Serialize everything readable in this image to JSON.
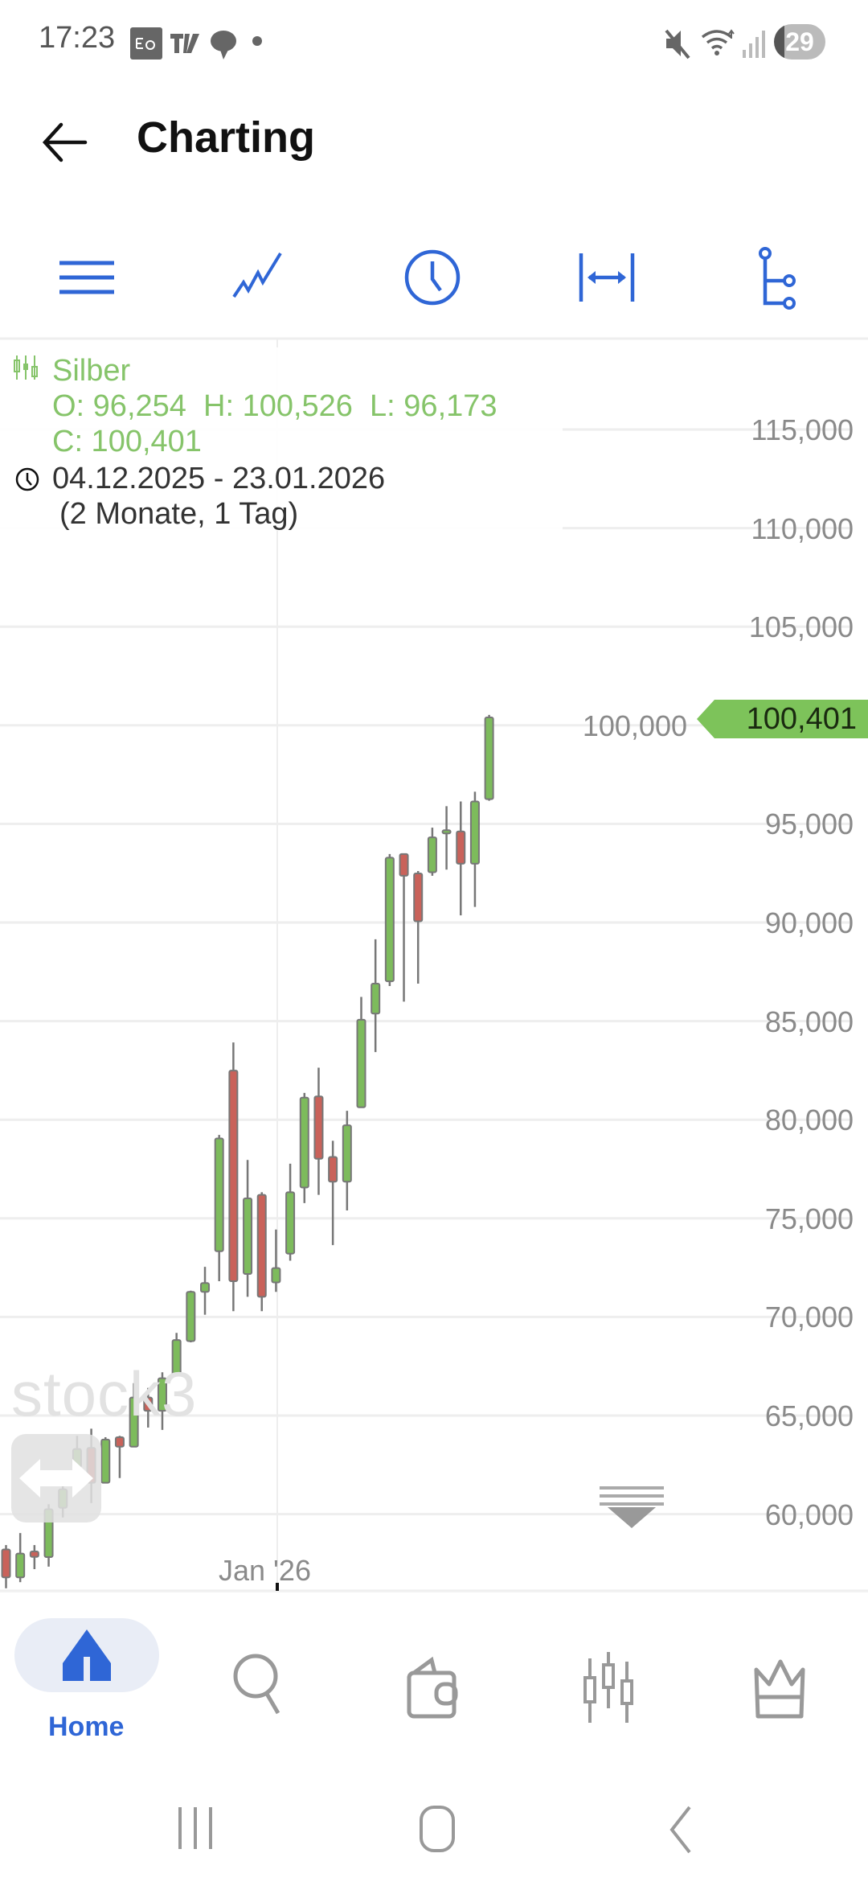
{
  "status_bar": {
    "time": "17:23",
    "notif_icons": [
      "ebay-icon",
      "tradingview-icon",
      "chat-icon",
      "dot-icon"
    ],
    "system_icons": [
      "mute-icon",
      "wifi-icon",
      "signal-icon"
    ],
    "battery": "29"
  },
  "header": {
    "title": "Charting",
    "back_icon": "arrow-left-icon"
  },
  "toolbar": {
    "icons": [
      "menu-icon",
      "indicator-icon",
      "clock-icon",
      "range-icon",
      "tree-icon"
    ],
    "accent": "#2f66d6"
  },
  "legend": {
    "instrument": "Silber",
    "ohlc_line": "O: 96,254  H: 100,526  L: 96,173",
    "close_line": "C: 100,401",
    "date_range": "04.12.2025 - 23.01.2026",
    "duration": "(2 Monate, 1 Tag)"
  },
  "watermark": "stock3",
  "chart_data": {
    "type": "candlestick",
    "instrument": "Silber",
    "ylim": [
      55.3,
      118.5
    ],
    "yticks": [
      "115,000",
      "110,000",
      "105,000",
      "100,000",
      "95,000",
      "90,000",
      "85,000",
      "80,000",
      "75,000",
      "70,000",
      "65,000",
      "60,000"
    ],
    "ytick_values": [
      115,
      110,
      105,
      100,
      95,
      90,
      85,
      80,
      75,
      70,
      65,
      60
    ],
    "xtick": {
      "label": "Jan '26",
      "candle_index": 19
    },
    "last_price_label": "100,401",
    "last_price": 100.401,
    "colors": {
      "up": "#7dbb5c",
      "down": "#c9625a",
      "wick": "#777777",
      "tag": "#7dc35a"
    },
    "grid": true,
    "candles": [
      {
        "o": 58.21,
        "h": 58.43,
        "l": 56.24,
        "c": 56.79
      },
      {
        "o": 56.79,
        "h": 59.04,
        "l": 56.55,
        "c": 58.0
      },
      {
        "o": 58.11,
        "h": 58.43,
        "l": 57.21,
        "c": 57.83
      },
      {
        "o": 57.82,
        "h": 60.5,
        "l": 57.34,
        "c": 60.25
      },
      {
        "o": 60.32,
        "h": 61.59,
        "l": 59.83,
        "c": 61.26
      },
      {
        "o": 62.38,
        "h": 63.97,
        "l": 62.02,
        "c": 63.3
      },
      {
        "o": 63.36,
        "h": 64.33,
        "l": 60.56,
        "c": 61.59
      },
      {
        "o": 61.59,
        "h": 63.9,
        "l": 61.59,
        "c": 63.78
      },
      {
        "o": 63.9,
        "h": 63.97,
        "l": 61.83,
        "c": 63.42
      },
      {
        "o": 63.42,
        "h": 66.64,
        "l": 63.42,
        "c": 65.91
      },
      {
        "o": 65.91,
        "h": 66.4,
        "l": 64.39,
        "c": 65.24
      },
      {
        "o": 65.24,
        "h": 67.19,
        "l": 64.27,
        "c": 66.89
      },
      {
        "o": 67.07,
        "h": 69.19,
        "l": 67.07,
        "c": 68.83
      },
      {
        "o": 68.77,
        "h": 71.33,
        "l": 68.71,
        "c": 71.27
      },
      {
        "o": 71.27,
        "h": 72.54,
        "l": 70.11,
        "c": 71.72
      },
      {
        "o": 73.33,
        "h": 79.23,
        "l": 71.81,
        "c": 79.05
      },
      {
        "o": 82.49,
        "h": 83.92,
        "l": 70.29,
        "c": 71.81
      },
      {
        "o": 72.18,
        "h": 77.96,
        "l": 71.02,
        "c": 76.01
      },
      {
        "o": 76.19,
        "h": 76.32,
        "l": 70.29,
        "c": 71.02
      },
      {
        "o": 71.75,
        "h": 74.43,
        "l": 71.27,
        "c": 72.48
      },
      {
        "o": 73.21,
        "h": 77.77,
        "l": 72.85,
        "c": 76.32
      },
      {
        "o": 76.56,
        "h": 81.36,
        "l": 75.77,
        "c": 81.12
      },
      {
        "o": 81.18,
        "h": 82.64,
        "l": 76.19,
        "c": 78.02
      },
      {
        "o": 78.11,
        "h": 78.93,
        "l": 73.64,
        "c": 76.86
      },
      {
        "o": 76.86,
        "h": 80.45,
        "l": 75.4,
        "c": 79.72
      },
      {
        "o": 80.63,
        "h": 86.23,
        "l": 80.63,
        "c": 85.07
      },
      {
        "o": 85.38,
        "h": 89.15,
        "l": 83.43,
        "c": 86.9
      },
      {
        "o": 87.02,
        "h": 93.47,
        "l": 86.78,
        "c": 93.29
      },
      {
        "o": 93.47,
        "h": 93.47,
        "l": 85.99,
        "c": 92.37
      },
      {
        "o": 92.49,
        "h": 92.61,
        "l": 86.9,
        "c": 90.06
      },
      {
        "o": 92.55,
        "h": 94.81,
        "l": 92.37,
        "c": 94.32
      },
      {
        "o": 94.62,
        "h": 95.9,
        "l": 92.68,
        "c": 94.68
      },
      {
        "o": 94.62,
        "h": 96.14,
        "l": 90.36,
        "c": 92.98
      },
      {
        "o": 92.98,
        "h": 96.63,
        "l": 90.79,
        "c": 96.14
      },
      {
        "o": 96.254,
        "h": 100.526,
        "l": 96.173,
        "c": 100.401
      }
    ]
  },
  "bottom_nav": {
    "items": [
      {
        "label": "Home",
        "icon": "home-icon",
        "active": true
      },
      {
        "icon": "search-icon"
      },
      {
        "icon": "wallet-icon"
      },
      {
        "icon": "candles-icon"
      },
      {
        "icon": "crown-icon"
      }
    ],
    "active_color": "#2f66d6"
  },
  "system_nav": {
    "icons": [
      "recents-icon",
      "home-circle-icon",
      "back-chevron-icon"
    ]
  }
}
